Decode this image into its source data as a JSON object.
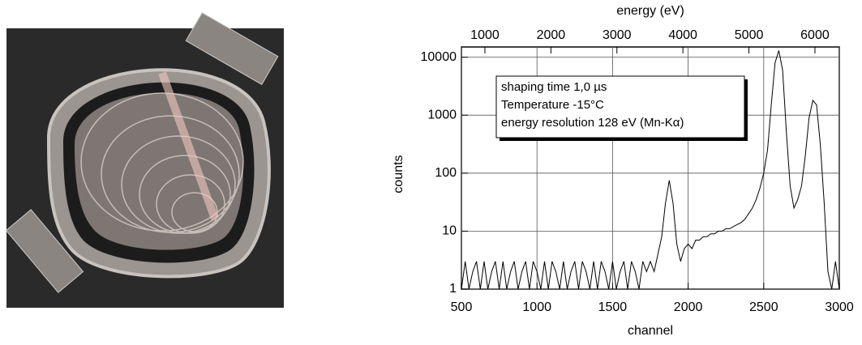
{
  "chart_data": {
    "type": "line",
    "x_label": "channel",
    "y_label": "counts",
    "x2_label": "energy (eV)",
    "annotations": [
      "shaping time 1,0 µs",
      "Temperature -15°C",
      "energy resolution 128 eV (Mn-Kα)"
    ],
    "log_y": true,
    "grid": true,
    "xlim": [
      500,
      3000
    ],
    "xticks": [
      500,
      1000,
      1500,
      2000,
      2500,
      3000
    ],
    "x2lim": [
      644,
      6369
    ],
    "x2ticks": [
      1000,
      2000,
      3000,
      4000,
      5000,
      6000
    ],
    "ylim": [
      1,
      15000
    ],
    "yticks": [
      1,
      10,
      100,
      1000,
      10000
    ],
    "x": [
      500,
      525,
      550,
      575,
      600,
      625,
      650,
      675,
      700,
      725,
      750,
      775,
      800,
      825,
      850,
      875,
      900,
      925,
      950,
      975,
      1000,
      1025,
      1050,
      1075,
      1100,
      1125,
      1150,
      1175,
      1200,
      1225,
      1250,
      1275,
      1300,
      1325,
      1350,
      1375,
      1400,
      1425,
      1450,
      1475,
      1500,
      1525,
      1550,
      1575,
      1600,
      1625,
      1650,
      1675,
      1700,
      1725,
      1750,
      1775,
      1800,
      1825,
      1850,
      1875,
      1900,
      1925,
      1950,
      1975,
      2000,
      2025,
      2050,
      2075,
      2100,
      2125,
      2150,
      2175,
      2200,
      2225,
      2250,
      2275,
      2300,
      2325,
      2350,
      2375,
      2400,
      2425,
      2450,
      2475,
      2500,
      2525,
      2550,
      2575,
      2600,
      2625,
      2650,
      2675,
      2700,
      2725,
      2750,
      2775,
      2800,
      2825,
      2850,
      2875,
      2900,
      2925,
      2950,
      2975,
      3000
    ],
    "series": [
      {
        "name": "counts",
        "color": "#000000",
        "values": [
          1,
          3,
          1,
          2,
          3,
          1,
          3,
          1,
          2,
          3,
          1,
          3,
          1,
          2,
          3,
          1,
          2,
          3,
          1,
          3,
          2,
          1,
          3,
          1,
          3,
          2,
          1,
          3,
          1,
          2,
          3,
          1,
          3,
          2,
          1,
          3,
          1,
          3,
          2,
          1,
          3,
          1,
          2,
          3,
          1,
          3,
          2,
          1,
          3,
          2,
          3,
          2,
          4,
          8,
          30,
          75,
          30,
          6,
          3,
          5,
          6,
          5,
          7,
          7,
          8,
          8,
          9,
          9,
          10,
          10,
          11,
          11,
          12,
          13,
          14,
          16,
          20,
          25,
          35,
          55,
          100,
          250,
          1500,
          8000,
          13000,
          6000,
          500,
          60,
          25,
          35,
          60,
          200,
          900,
          1800,
          1500,
          300,
          30,
          2,
          1,
          3,
          1
        ]
      }
    ]
  }
}
